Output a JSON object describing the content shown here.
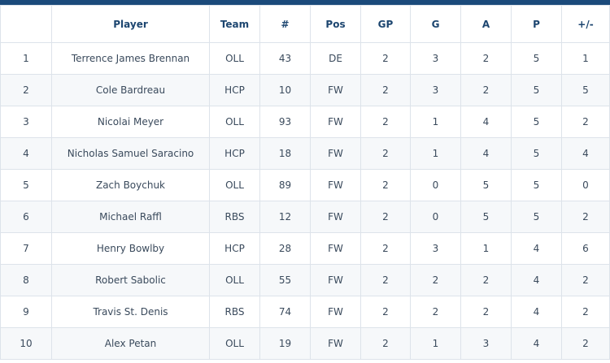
{
  "columns": [
    "",
    "Player",
    "Team",
    "#",
    "Pos",
    "GP",
    "G",
    "A",
    "P",
    "+/-"
  ],
  "rows": [
    [
      "1",
      "Terrence James Brennan",
      "OLL",
      "43",
      "DE",
      "2",
      "3",
      "2",
      "5",
      "1"
    ],
    [
      "2",
      "Cole Bardreau",
      "HCP",
      "10",
      "FW",
      "2",
      "3",
      "2",
      "5",
      "5"
    ],
    [
      "3",
      "Nicolai Meyer",
      "OLL",
      "93",
      "FW",
      "2",
      "1",
      "4",
      "5",
      "2"
    ],
    [
      "4",
      "Nicholas Samuel Saracino",
      "HCP",
      "18",
      "FW",
      "2",
      "1",
      "4",
      "5",
      "4"
    ],
    [
      "5",
      "Zach Boychuk",
      "OLL",
      "89",
      "FW",
      "2",
      "0",
      "5",
      "5",
      "0"
    ],
    [
      "6",
      "Michael Raffl",
      "RBS",
      "12",
      "FW",
      "2",
      "0",
      "5",
      "5",
      "2"
    ],
    [
      "7",
      "Henry Bowlby",
      "HCP",
      "28",
      "FW",
      "2",
      "3",
      "1",
      "4",
      "6"
    ],
    [
      "8",
      "Robert Sabolic",
      "OLL",
      "55",
      "FW",
      "2",
      "2",
      "2",
      "4",
      "2"
    ],
    [
      "9",
      "Travis St. Denis",
      "RBS",
      "74",
      "FW",
      "2",
      "2",
      "2",
      "4",
      "2"
    ],
    [
      "10",
      "Alex Petan",
      "OLL",
      "19",
      "FW",
      "2",
      "1",
      "3",
      "4",
      "2"
    ]
  ]
}
